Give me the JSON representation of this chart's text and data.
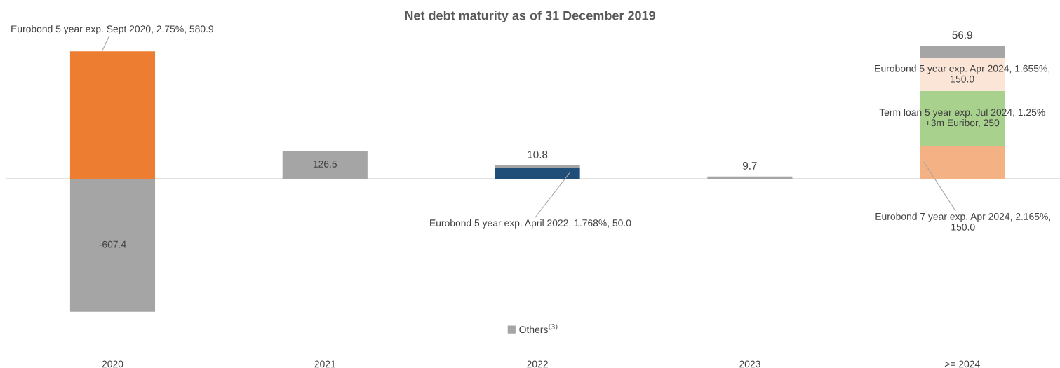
{
  "chart_data": {
    "type": "bar",
    "title": "Net debt maturity as of 31 December 2019",
    "categories": [
      "2020",
      "2021",
      "2022",
      "2023",
      ">= 2024"
    ],
    "stacked": true,
    "legend": "bottom",
    "grid": false,
    "series": [
      {
        "color": "#ed7d31",
        "values": [
          580.9,
          null,
          null,
          null,
          null
        ],
        "value_labels": [
          "Eurobond 5 year exp. Sept 2020, 2.75%, 580.9",
          null,
          null,
          null,
          null
        ]
      },
      {
        "color": "#1f4e79",
        "values": [
          null,
          null,
          50.0,
          null,
          null
        ],
        "value_labels": [
          null,
          null,
          "Eurobond 5 year exp. April 2022, 1.768%, 50.0",
          null,
          null
        ]
      },
      {
        "color": "#f4b183",
        "values": [
          null,
          null,
          null,
          null,
          150.0
        ],
        "value_labels": [
          null,
          null,
          null,
          null,
          "Eurobond 7 year exp. Apr 2024, 2.165%,\n150.0"
        ]
      },
      {
        "color": "#a9d18e",
        "values": [
          null,
          null,
          null,
          null,
          250
        ],
        "value_labels": [
          null,
          null,
          null,
          null,
          "Term loan 5 year exp. Jul 2024, 1.25%\n+3m Euribor, 250"
        ]
      },
      {
        "color": "#fbe5d6",
        "values": [
          null,
          null,
          null,
          null,
          150.0
        ],
        "value_labels": [
          null,
          null,
          null,
          null,
          "Eurobond 5 year exp. Apr 2024, 1.655%,\n150.0"
        ]
      },
      {
        "name": "Others$^{(3)}$",
        "color": "#a5a5a5",
        "values": [
          -607.4,
          126.5,
          10.8,
          9.7,
          56.9
        ],
        "value_labels": [
          "-607.4",
          "126.5",
          "10.8",
          "9.7",
          "56.9"
        ]
      }
    ]
  }
}
